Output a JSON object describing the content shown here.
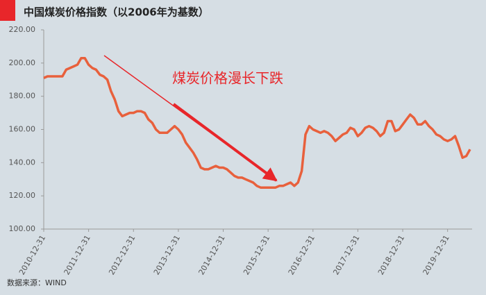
{
  "chart_data": {
    "type": "line",
    "title": "中国煤炭价格指数（以2006年为基数）",
    "annotation": "煤炭价格漫长下跌",
    "source": "数据来源：WIND",
    "color": "#e8603c",
    "categories": [
      "2010-12-31",
      null,
      null,
      null,
      null,
      null,
      null,
      null,
      null,
      null,
      null,
      null,
      "2011-12-31",
      null,
      null,
      null,
      null,
      null,
      null,
      null,
      null,
      null,
      null,
      null,
      "2012-12-31",
      null,
      null,
      null,
      null,
      null,
      null,
      null,
      null,
      null,
      null,
      null,
      "2013-12-31",
      null,
      null,
      null,
      null,
      null,
      null,
      null,
      null,
      null,
      null,
      null,
      "2014-12-31",
      null,
      null,
      null,
      null,
      null,
      null,
      null,
      null,
      null,
      null,
      null,
      "2015-12-31",
      null,
      null,
      null,
      null,
      null,
      null,
      null,
      null,
      null,
      null,
      null,
      "2016-12-31",
      null,
      null,
      null,
      null,
      null,
      null,
      null,
      null,
      null,
      null,
      null,
      "2017-12-31",
      null,
      null,
      null,
      null,
      null,
      null,
      null,
      null,
      null,
      null,
      null,
      "2018-12-31",
      null,
      null,
      null,
      null,
      null,
      null,
      null,
      null,
      null,
      null,
      null,
      "2019-12-31",
      null,
      null,
      null,
      null,
      null,
      null
    ],
    "values": [
      191,
      192,
      192,
      192,
      192,
      192,
      196,
      197,
      198,
      199,
      203,
      203,
      199,
      197,
      196,
      193,
      192,
      190,
      183,
      178,
      171,
      168,
      169,
      170,
      170,
      171,
      171,
      170,
      166,
      164,
      160,
      158,
      158,
      158,
      160,
      162,
      160,
      157,
      152,
      149,
      146,
      142,
      137,
      136,
      136,
      137,
      138,
      137,
      137,
      136,
      134,
      132,
      131,
      131,
      130,
      129,
      128,
      126,
      125,
      125,
      125,
      125,
      125,
      126,
      126,
      127,
      128,
      126,
      128,
      135,
      157,
      162,
      160,
      159,
      158,
      159,
      158,
      156,
      153,
      155,
      157,
      158,
      161,
      160,
      156,
      158,
      161,
      162,
      161,
      159,
      156,
      158,
      165,
      165,
      159,
      160,
      163,
      166,
      169,
      167,
      163,
      163,
      165,
      162,
      160,
      157,
      156,
      154,
      153,
      154,
      156,
      150,
      143,
      144,
      148
    ],
    "ylim": [
      100,
      220
    ],
    "yticks": [
      {
        "value": 100,
        "label": "100.00"
      },
      {
        "value": 120,
        "label": "120.00"
      },
      {
        "value": 140,
        "label": "140.00"
      },
      {
        "value": 160,
        "label": "160.00"
      },
      {
        "value": 180,
        "label": "180.00"
      },
      {
        "value": 200,
        "label": "200.00"
      },
      {
        "value": 220,
        "label": "220.00"
      }
    ]
  }
}
